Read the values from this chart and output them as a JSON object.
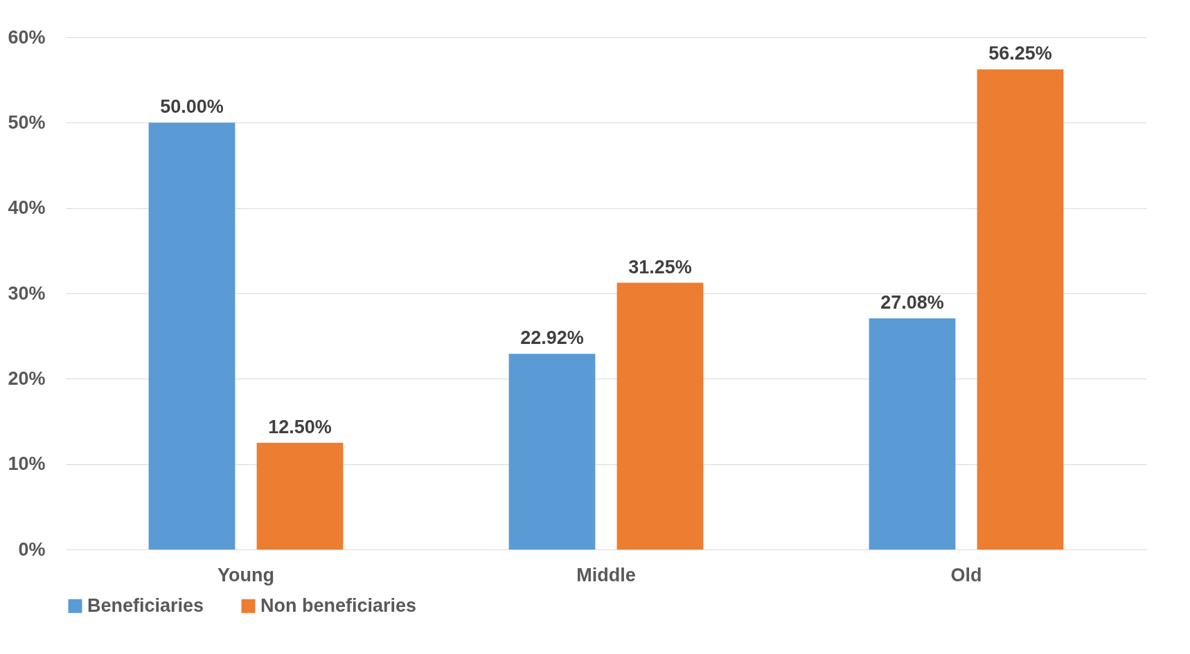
{
  "chart_data": {
    "type": "bar",
    "categories": [
      "Young",
      "Middle",
      "Old"
    ],
    "series": [
      {
        "name": "Beneficiaries",
        "color": "#5b9bd5",
        "values": [
          50,
          22.92,
          27.08
        ],
        "value_labels": [
          "50.00%",
          "22.92%",
          "27.08%"
        ]
      },
      {
        "name": "Non beneficiaries",
        "color": "#ed7d31",
        "values": [
          12.5,
          31.25,
          56.25
        ],
        "value_labels": [
          "12.50%",
          "31.25%",
          "56.25%"
        ]
      }
    ],
    "ylim": [
      0,
      60
    ],
    "yticks": [
      {
        "value": 0,
        "label": "0%"
      },
      {
        "value": 10,
        "label": "10%"
      },
      {
        "value": 20,
        "label": "20%"
      },
      {
        "value": 30,
        "label": "30%"
      },
      {
        "value": 40,
        "label": "40%"
      },
      {
        "value": 50,
        "label": "50%"
      },
      {
        "value": 60,
        "label": "60%"
      }
    ],
    "grid": "y",
    "legend": "bottom"
  }
}
